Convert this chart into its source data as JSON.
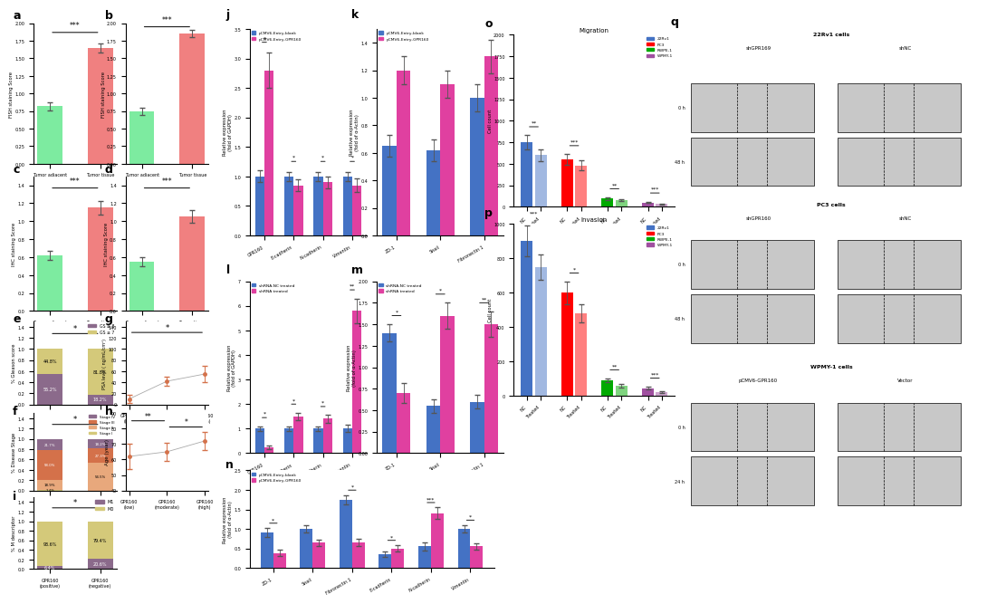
{
  "panel_a": {
    "values": [
      0.82,
      1.65
    ],
    "errors": [
      0.06,
      0.06
    ],
    "colors": [
      "#7DEBA0",
      "#F08080"
    ],
    "ylabel": "FISH staining Score",
    "ylim": [
      0,
      2.0
    ],
    "sig": "***"
  },
  "panel_b": {
    "values": [
      0.75,
      1.85
    ],
    "errors": [
      0.05,
      0.05
    ],
    "colors": [
      "#7DEBA0",
      "#F08080"
    ],
    "ylabel": "FISH staining Score",
    "ylim": [
      0,
      2.0
    ],
    "sig": "***"
  },
  "panel_c": {
    "values": [
      0.62,
      1.15
    ],
    "errors": [
      0.05,
      0.08
    ],
    "colors": [
      "#7DEBA0",
      "#F08080"
    ],
    "ylabel": "IHC staining Score",
    "ylim": [
      0,
      1.5
    ],
    "sig": "***"
  },
  "panel_d": {
    "values": [
      0.55,
      1.05
    ],
    "errors": [
      0.05,
      0.07
    ],
    "colors": [
      "#7DEBA0",
      "#F08080"
    ],
    "ylabel": "IHC staining Score",
    "ylim": [
      0,
      1.5
    ],
    "sig": "***"
  },
  "panel_e": {
    "gs_ge8": [
      55.2,
      18.2
    ],
    "gs_le7": [
      44.8,
      81.8
    ],
    "color_ge8": "#8B6A8B",
    "color_le7": "#D4C97A",
    "ylabel": "% Gleason score",
    "sig": "*"
  },
  "panel_f": {
    "stage4": [
      21.7,
      18.2
    ],
    "stage3": [
      58.0,
      27.3
    ],
    "stage2": [
      18.9,
      54.5
    ],
    "stage1": [
      1.4,
      0.0
    ],
    "colors": [
      "#8B6A8B",
      "#D4714A",
      "#E8A87C",
      "#D4C97A"
    ],
    "ylabel": "% Disease Stage",
    "sig": "*"
  },
  "panel_g": {
    "values": [
      10,
      42,
      55
    ],
    "errors": [
      8,
      8,
      15
    ],
    "ylabel": "PSA level ( ng/mL/cm³)",
    "ylim": [
      0,
      150
    ],
    "sig": "*"
  },
  "panel_h": {
    "values": [
      62,
      65,
      72
    ],
    "errors": [
      8,
      6,
      6
    ],
    "ylabel": "Age (year)",
    "ylim": [
      40,
      90
    ]
  },
  "panel_i": {
    "m1": [
      6.4,
      20.6
    ],
    "m0": [
      93.6,
      79.4
    ],
    "color_m1": "#8B6A8B",
    "color_m0": "#D4C97A",
    "ylabel": "% M descriptor",
    "sig": "*"
  },
  "panel_j": {
    "categories": [
      "GPR160",
      "E-cadherin",
      "N-cadherin",
      "Vimentin"
    ],
    "blank": [
      1.0,
      1.0,
      1.0,
      1.0
    ],
    "gpr160": [
      2.8,
      0.85,
      0.9,
      0.85
    ],
    "blank_err": [
      0.1,
      0.08,
      0.08,
      0.08
    ],
    "gpr160_err": [
      0.3,
      0.1,
      0.1,
      0.12
    ],
    "colors": [
      "#4472C4",
      "#E040A0"
    ],
    "ylabel": "Relative expression\n(fold of GAPDH)",
    "ylim": [
      0,
      3.5
    ],
    "legend": [
      "pCMV6-Entry-blank",
      "pCMV6-Entry-GPR160"
    ],
    "sig": [
      "*",
      "*",
      "*",
      "*"
    ]
  },
  "panel_k": {
    "categories": [
      "ZO-1",
      "Snail",
      "Fibronectin 1"
    ],
    "blank": [
      0.65,
      0.62,
      1.0
    ],
    "gpr160": [
      1.2,
      1.1,
      1.3
    ],
    "blank_err": [
      0.08,
      0.08,
      0.1
    ],
    "gpr160_err": [
      0.1,
      0.1,
      0.12
    ],
    "colors": [
      "#4472C4",
      "#E040A0"
    ],
    "ylabel": "Relative expression\n(fold of α-Actin)",
    "ylim": [
      0,
      1.5
    ],
    "legend": [
      "pCMV6-Entry-blank",
      "pCMV6-Entry-GPR160"
    ],
    "sig": [
      "",
      "",
      ""
    ]
  },
  "panel_l": {
    "categories": [
      "GPR160",
      "E-cadherin",
      "N-cadherin",
      "Vimentin"
    ],
    "nc": [
      1.0,
      1.0,
      1.0,
      1.0
    ],
    "shrna": [
      0.25,
      1.5,
      1.4,
      5.8
    ],
    "nc_err": [
      0.1,
      0.1,
      0.1,
      0.15
    ],
    "shrna_err": [
      0.08,
      0.15,
      0.15,
      0.5
    ],
    "colors": [
      "#4472C4",
      "#E040A0"
    ],
    "ylabel": "Relative expression\n(fold of GAPDH)",
    "ylim": [
      0,
      7
    ],
    "legend": [
      "shRNA-NC treated",
      "shRNA treated"
    ],
    "sig": [
      "*",
      "*",
      "*",
      "**"
    ]
  },
  "panel_m": {
    "categories": [
      "ZO-1",
      "Snail",
      "Fibronectin 1"
    ],
    "nc": [
      1.4,
      0.55,
      0.6
    ],
    "shrna": [
      0.7,
      1.6,
      1.5
    ],
    "nc_err": [
      0.1,
      0.08,
      0.08
    ],
    "shrna_err": [
      0.12,
      0.15,
      0.15
    ],
    "colors": [
      "#4472C4",
      "#E040A0"
    ],
    "ylabel": "Relative expression\n(fold of α-Actin)",
    "ylim": [
      0,
      2.0
    ],
    "legend": [
      "shRNA-NC treated",
      "shRNA treated"
    ],
    "sig": [
      "*",
      "*",
      "**"
    ]
  },
  "panel_n": {
    "categories": [
      "ZO-1",
      "Snail",
      "Fibronectin 1",
      "E-cadherin",
      "N-cadherin",
      "Vimentin"
    ],
    "blank": [
      0.9,
      1.0,
      1.75,
      0.35,
      0.55,
      1.0
    ],
    "gpr160": [
      0.38,
      0.65,
      0.65,
      0.5,
      1.4,
      0.55
    ],
    "blank_err": [
      0.12,
      0.1,
      0.12,
      0.08,
      0.1,
      0.1
    ],
    "gpr160_err": [
      0.08,
      0.08,
      0.1,
      0.08,
      0.15,
      0.08
    ],
    "colors": [
      "#4472C4",
      "#E040A0"
    ],
    "ylabel": "Relative expression\n(fold of α-Actin)",
    "ylim": [
      0,
      2.5
    ],
    "legend": [
      "pCMV6-Entry-blank",
      "pCMV6-Entry-GPR160"
    ],
    "sig": [
      "*",
      "",
      "*",
      "*",
      "***",
      "*"
    ]
  },
  "panel_o": {
    "cell_lines": [
      "22Rv1",
      "PC3",
      "RWPE-1",
      "WPMY-1"
    ],
    "nc_vals": [
      750,
      550,
      95,
      50
    ],
    "treated_vals": [
      600,
      480,
      75,
      30
    ],
    "nc_err": [
      80,
      60,
      15,
      10
    ],
    "treated_err": [
      70,
      55,
      12,
      5
    ],
    "colors": [
      "#4472C4",
      "#FF0000",
      "#00AA00",
      "#A050A0"
    ],
    "title": "Migration",
    "ylabel": "Cell count",
    "ylim": [
      0,
      2000
    ],
    "sig": [
      "**",
      "***",
      "**",
      "***"
    ]
  },
  "panel_p": {
    "cell_lines": [
      "22Rv1",
      "PC3",
      "RWPE-1",
      "WPMY-1"
    ],
    "nc_vals": [
      900,
      600,
      90,
      45
    ],
    "treated_vals": [
      750,
      480,
      60,
      20
    ],
    "nc_err": [
      90,
      65,
      12,
      8
    ],
    "treated_err": [
      75,
      55,
      10,
      5
    ],
    "colors": [
      "#4472C4",
      "#FF0000",
      "#00AA00",
      "#A050A0"
    ],
    "title": "Invasion",
    "ylabel": "Cell count",
    "ylim": [
      0,
      1000
    ],
    "sig": [
      "***",
      "*",
      "**",
      "***"
    ]
  }
}
